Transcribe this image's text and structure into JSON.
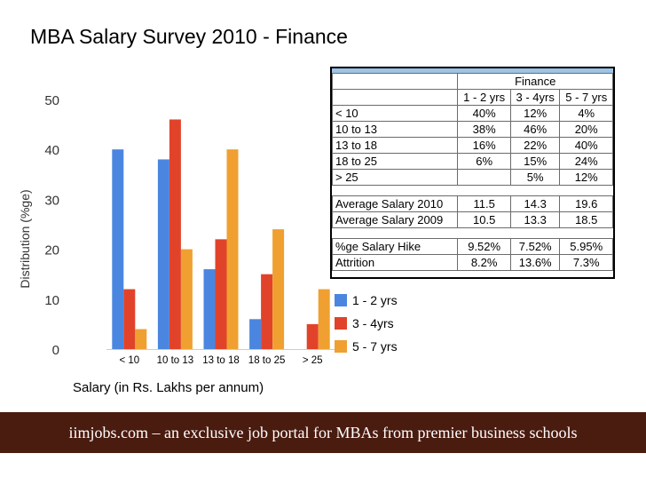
{
  "title": "MBA Salary Survey 2010 - Finance",
  "footer": "iimjobs.com – an exclusive job portal for MBAs from premier business schools",
  "chart_data": {
    "type": "bar",
    "categories": [
      "< 10",
      "10 to 13",
      "13 to 18",
      "18 to 25",
      "> 25"
    ],
    "series": [
      {
        "name": "1 - 2 yrs",
        "values": [
          40,
          38,
          16,
          6,
          null
        ],
        "color": "#4a86e0"
      },
      {
        "name": "3 - 4yrs",
        "values": [
          12,
          46,
          22,
          15,
          5
        ],
        "color": "#e1432a"
      },
      {
        "name": "5 - 7 yrs",
        "values": [
          4,
          20,
          40,
          24,
          12
        ],
        "color": "#f0a030"
      }
    ],
    "title": "",
    "xlabel": "Salary (in Rs. Lakhs per annum)",
    "ylabel": "Distribution (%ge)",
    "ylim": [
      0,
      50
    ],
    "yticks": [
      0,
      10,
      20,
      30,
      40,
      50
    ],
    "grid": false,
    "legend_placement": "right"
  },
  "table": {
    "title": "Finance",
    "headers": [
      "",
      "1 - 2 yrs",
      "3 - 4yrs",
      "5 - 7 yrs"
    ],
    "distribution_rows": [
      [
        "< 10",
        "40%",
        "12%",
        "4%"
      ],
      [
        "10 to 13",
        "38%",
        "46%",
        "20%"
      ],
      [
        "13 to 18",
        "16%",
        "22%",
        "40%"
      ],
      [
        "18 to 25",
        "6%",
        "15%",
        "24%"
      ],
      [
        "> 25",
        "",
        "5%",
        "12%"
      ]
    ],
    "salary_rows": [
      [
        "Average Salary 2010",
        "11.5",
        "14.3",
        "19.6"
      ],
      [
        "Average Salary 2009",
        "10.5",
        "13.3",
        "18.5"
      ]
    ],
    "hike_rows": [
      [
        "%ge Salary Hike",
        "9.52%",
        "7.52%",
        "5.95%"
      ],
      [
        "Attrition",
        "8.2%",
        "13.6%",
        "7.3%"
      ]
    ]
  }
}
